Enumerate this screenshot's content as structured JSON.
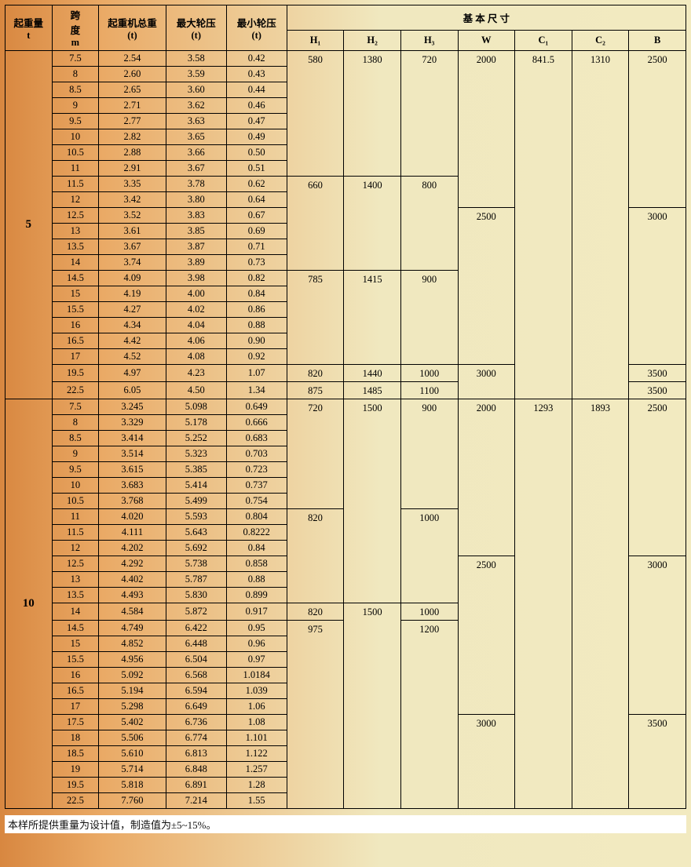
{
  "headers": {
    "h1": "起重量\nt",
    "h2": "跨\n度\nm",
    "h3": "起重机总重\n(t)",
    "h4": "最大轮压\n(t)",
    "h5": "最小轮压\n(t)",
    "h6": "基 本 尺 寸",
    "sub": [
      "H₁",
      "H₂",
      "H₃",
      "W",
      "C₁",
      "C₂",
      "B"
    ]
  },
  "footnote": "本样所提供重量为设计值，制造值为±5~15%。",
  "group1": {
    "label": "5",
    "left": [
      [
        "7.5",
        "2.54",
        "3.58",
        "0.42"
      ],
      [
        "8",
        "2.60",
        "3.59",
        "0.43"
      ],
      [
        "8.5",
        "2.65",
        "3.60",
        "0.44"
      ],
      [
        "9",
        "2.71",
        "3.62",
        "0.46"
      ],
      [
        "9.5",
        "2.77",
        "3.63",
        "0.47"
      ],
      [
        "10",
        "2.82",
        "3.65",
        "0.49"
      ],
      [
        "10.5",
        "2.88",
        "3.66",
        "0.50"
      ],
      [
        "11",
        "2.91",
        "3.67",
        "0.51"
      ],
      [
        "11.5",
        "3.35",
        "3.78",
        "0.62"
      ],
      [
        "12",
        "3.42",
        "3.80",
        "0.64"
      ],
      [
        "12.5",
        "3.52",
        "3.83",
        "0.67"
      ],
      [
        "13",
        "3.61",
        "3.85",
        "0.69"
      ],
      [
        "13.5",
        "3.67",
        "3.87",
        "0.71"
      ],
      [
        "14",
        "3.74",
        "3.89",
        "0.73"
      ],
      [
        "14.5",
        "4.09",
        "3.98",
        "0.82"
      ],
      [
        "15",
        "4.19",
        "4.00",
        "0.84"
      ],
      [
        "15.5",
        "4.27",
        "4.02",
        "0.86"
      ],
      [
        "16",
        "4.34",
        "4.04",
        "0.88"
      ],
      [
        "16.5",
        "4.42",
        "4.06",
        "0.90"
      ],
      [
        "17",
        "4.52",
        "4.08",
        "0.92"
      ],
      [
        "19.5",
        "4.97",
        "4.23",
        "1.07"
      ],
      [
        "22.5",
        "6.05",
        "4.50",
        "1.34"
      ]
    ],
    "right": {
      "H1": [
        {
          "v": "580",
          "r": 8
        },
        {
          "v": "660",
          "r": 6
        },
        {
          "v": "785",
          "r": 6
        },
        {
          "v": "820",
          "r": 1
        },
        {
          "v": "875",
          "r": 1
        }
      ],
      "H2": [
        {
          "v": "1380",
          "r": 8
        },
        {
          "v": "1400",
          "r": 6
        },
        {
          "v": "1415",
          "r": 6
        },
        {
          "v": "1440",
          "r": 1
        },
        {
          "v": "1485",
          "r": 1
        }
      ],
      "H3": [
        {
          "v": "720",
          "r": 8
        },
        {
          "v": "800",
          "r": 6
        },
        {
          "v": "900",
          "r": 6
        },
        {
          "v": "1000",
          "r": 1
        },
        {
          "v": "1100",
          "r": 1
        }
      ],
      "W": [
        {
          "v": "2000",
          "r": 10
        },
        {
          "v": "2500",
          "r": 10
        },
        {
          "v": "3000",
          "r": 2
        }
      ],
      "C1": [
        {
          "v": "841.5",
          "r": 22
        }
      ],
      "C2": [
        {
          "v": "1310",
          "r": 22
        }
      ],
      "B": [
        {
          "v": "2500",
          "r": 10
        },
        {
          "v": "3000",
          "r": 10
        },
        {
          "v": "3500",
          "r": 1
        },
        {
          "v": "3500",
          "r": 1
        }
      ]
    }
  },
  "group2": {
    "label": "10",
    "left": [
      [
        "7.5",
        "3.245",
        "5.098",
        "0.649"
      ],
      [
        "8",
        "3.329",
        "5.178",
        "0.666"
      ],
      [
        "8.5",
        "3.414",
        "5.252",
        "0.683"
      ],
      [
        "9",
        "3.514",
        "5.323",
        "0.703"
      ],
      [
        "9.5",
        "3.615",
        "5.385",
        "0.723"
      ],
      [
        "10",
        "3.683",
        "5.414",
        "0.737"
      ],
      [
        "10.5",
        "3.768",
        "5.499",
        "0.754"
      ],
      [
        "11",
        "4.020",
        "5.593",
        "0.804"
      ],
      [
        "11.5",
        "4.111",
        "5.643",
        "0.8222"
      ],
      [
        "12",
        "4.202",
        "5.692",
        "0.84"
      ],
      [
        "12.5",
        "4.292",
        "5.738",
        "0.858"
      ],
      [
        "13",
        "4.402",
        "5.787",
        "0.88"
      ],
      [
        "13.5",
        "4.493",
        "5.830",
        "0.899"
      ],
      [
        "14",
        "4.584",
        "5.872",
        "0.917"
      ],
      [
        "14.5",
        "4.749",
        "6.422",
        "0.95"
      ],
      [
        "15",
        "4.852",
        "6.448",
        "0.96"
      ],
      [
        "15.5",
        "4.956",
        "6.504",
        "0.97"
      ],
      [
        "16",
        "5.092",
        "6.568",
        "1.0184"
      ],
      [
        "16.5",
        "5.194",
        "6.594",
        "1.039"
      ],
      [
        "17",
        "5.298",
        "6.649",
        "1.06"
      ],
      [
        "17.5",
        "5.402",
        "6.736",
        "1.08"
      ],
      [
        "18",
        "5.506",
        "6.774",
        "1.101"
      ],
      [
        "18.5",
        "5.610",
        "6.813",
        "1.122"
      ],
      [
        "19",
        "5.714",
        "6.848",
        "1.257"
      ],
      [
        "19.5",
        "5.818",
        "6.891",
        "1.28"
      ],
      [
        "22.5",
        "7.760",
        "7.214",
        "1.55"
      ]
    ],
    "right": {
      "H1": [
        {
          "v": "720",
          "r": 7
        },
        {
          "v": "820",
          "r": 6
        },
        {
          "v": "820",
          "r": 1
        },
        {
          "v": "975",
          "r": 12
        }
      ],
      "H2": [
        {
          "v": "1500",
          "r": 13
        },
        {
          "v": "1500",
          "r": 13
        }
      ],
      "H3": [
        {
          "v": "900",
          "r": 7
        },
        {
          "v": "1000",
          "r": 6
        },
        {
          "v": "1000",
          "r": 1
        },
        {
          "v": "1200",
          "r": 12
        }
      ],
      "W": [
        {
          "v": "2000",
          "r": 10
        },
        {
          "v": "2500",
          "r": 10
        },
        {
          "v": "3000",
          "r": 6
        }
      ],
      "C1": [
        {
          "v": "1293",
          "r": 26
        }
      ],
      "C2": [
        {
          "v": "1893",
          "r": 26
        }
      ],
      "B": [
        {
          "v": "2500",
          "r": 10
        },
        {
          "v": "3000",
          "r": 10
        },
        {
          "v": "3500",
          "r": 6
        }
      ]
    }
  }
}
